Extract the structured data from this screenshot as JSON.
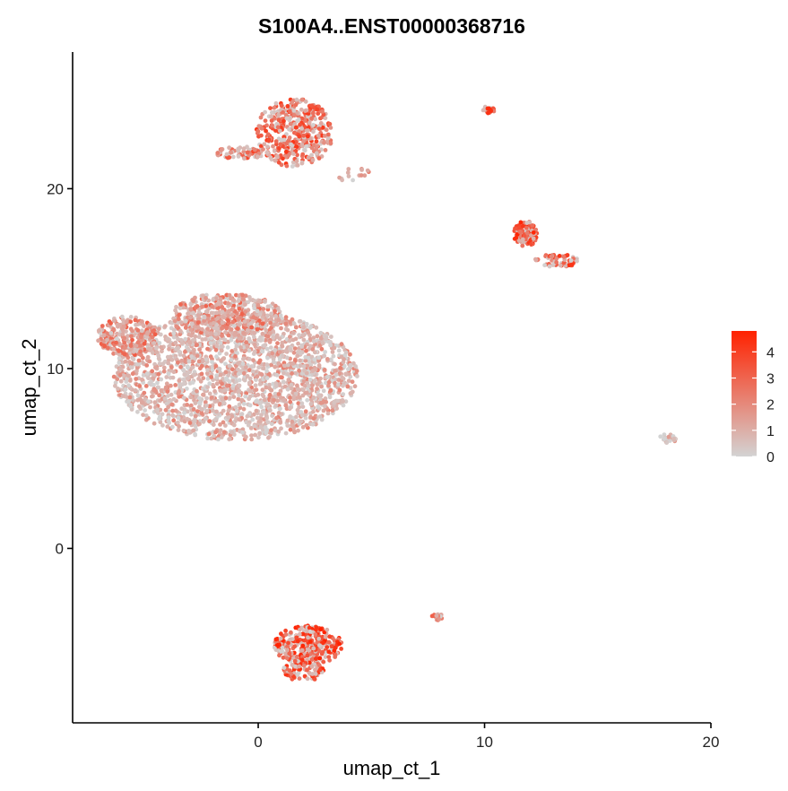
{
  "chart_data": {
    "type": "scatter",
    "title": "S100A4..ENST00000368716",
    "xlabel": "umap_ct_1",
    "ylabel": "umap_ct_2",
    "xlim": [
      -8.2,
      20.0
    ],
    "ylim": [
      -9.7,
      27.6
    ],
    "xticks": [
      0,
      10,
      20
    ],
    "yticks": [
      0,
      10,
      20
    ],
    "grid": false,
    "legend": {
      "position": "right",
      "type": "colorbar",
      "min": 0,
      "max": 4.8,
      "ticks": [
        0,
        1,
        2,
        3,
        4
      ],
      "low_color": "#d3d3d3",
      "high_color": "#ff2200"
    },
    "clusters": [
      {
        "cx": -1.0,
        "cy": 9.6,
        "rx": 5.4,
        "ry": 3.6,
        "n": 2100,
        "shape": "ellipse",
        "expr_mean": 1.0
      },
      {
        "cx": -5.8,
        "cy": 11.8,
        "rx": 1.3,
        "ry": 1.1,
        "n": 220,
        "shape": "ellipse",
        "expr_mean": 2.0
      },
      {
        "cx": -1.4,
        "cy": 13.0,
        "rx": 2.4,
        "ry": 1.2,
        "n": 380,
        "shape": "ellipse",
        "expr_mean": 1.8
      },
      {
        "cx": 1.6,
        "cy": 23.1,
        "rx": 1.7,
        "ry": 1.9,
        "n": 420,
        "shape": "ellipse",
        "expr_mean": 3.0
      },
      {
        "cx": -0.7,
        "cy": 22.0,
        "rx": 1.2,
        "ry": 0.35,
        "n": 70,
        "shape": "ellipse",
        "expr_mean": 2.6
      },
      {
        "cx": 4.2,
        "cy": 20.8,
        "rx": 0.8,
        "ry": 0.45,
        "n": 14,
        "shape": "ellipse",
        "expr_mean": 1.0
      },
      {
        "cx": 10.2,
        "cy": 24.4,
        "rx": 0.3,
        "ry": 0.2,
        "n": 25,
        "shape": "ellipse",
        "expr_mean": 3.3
      },
      {
        "cx": 11.8,
        "cy": 17.5,
        "rx": 0.55,
        "ry": 0.7,
        "n": 110,
        "shape": "ellipse",
        "expr_mean": 3.5
      },
      {
        "cx": 13.2,
        "cy": 16.0,
        "rx": 1.0,
        "ry": 0.35,
        "n": 60,
        "shape": "ellipse",
        "expr_mean": 3.2
      },
      {
        "cx": 18.1,
        "cy": 6.1,
        "rx": 0.4,
        "ry": 0.25,
        "n": 30,
        "shape": "ellipse",
        "expr_mean": 0.4
      },
      {
        "cx": 2.2,
        "cy": -5.4,
        "rx": 1.5,
        "ry": 1.1,
        "n": 300,
        "shape": "ellipse",
        "expr_mean": 3.6
      },
      {
        "cx": 2.0,
        "cy": -6.8,
        "rx": 0.9,
        "ry": 0.6,
        "n": 80,
        "shape": "ellipse",
        "expr_mean": 3.4
      },
      {
        "cx": 7.9,
        "cy": -3.8,
        "rx": 0.25,
        "ry": 0.2,
        "n": 14,
        "shape": "ellipse",
        "expr_mean": 2.5
      }
    ]
  }
}
